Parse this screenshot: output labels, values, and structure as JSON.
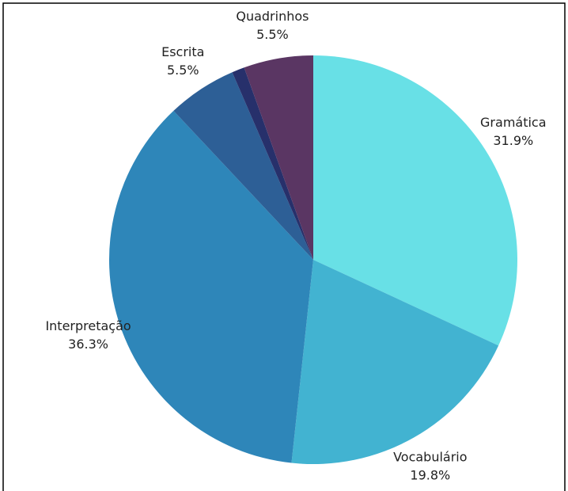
{
  "chart_data": {
    "type": "pie",
    "categories": [
      "Gramática",
      "Vocabulário",
      "Interpretação",
      "Escrita",
      null,
      "Quadrinhos"
    ],
    "values": [
      31.9,
      19.8,
      36.3,
      5.5,
      1.0,
      5.5
    ],
    "value_labels": [
      "31.9%",
      "19.8%",
      "36.3%",
      "5.5%",
      null,
      "5.5%"
    ],
    "colors": [
      "#68e0e6",
      "#42b3d1",
      "#2e86b9",
      "#2d5f96",
      "#27306b",
      "#5a3663"
    ]
  }
}
